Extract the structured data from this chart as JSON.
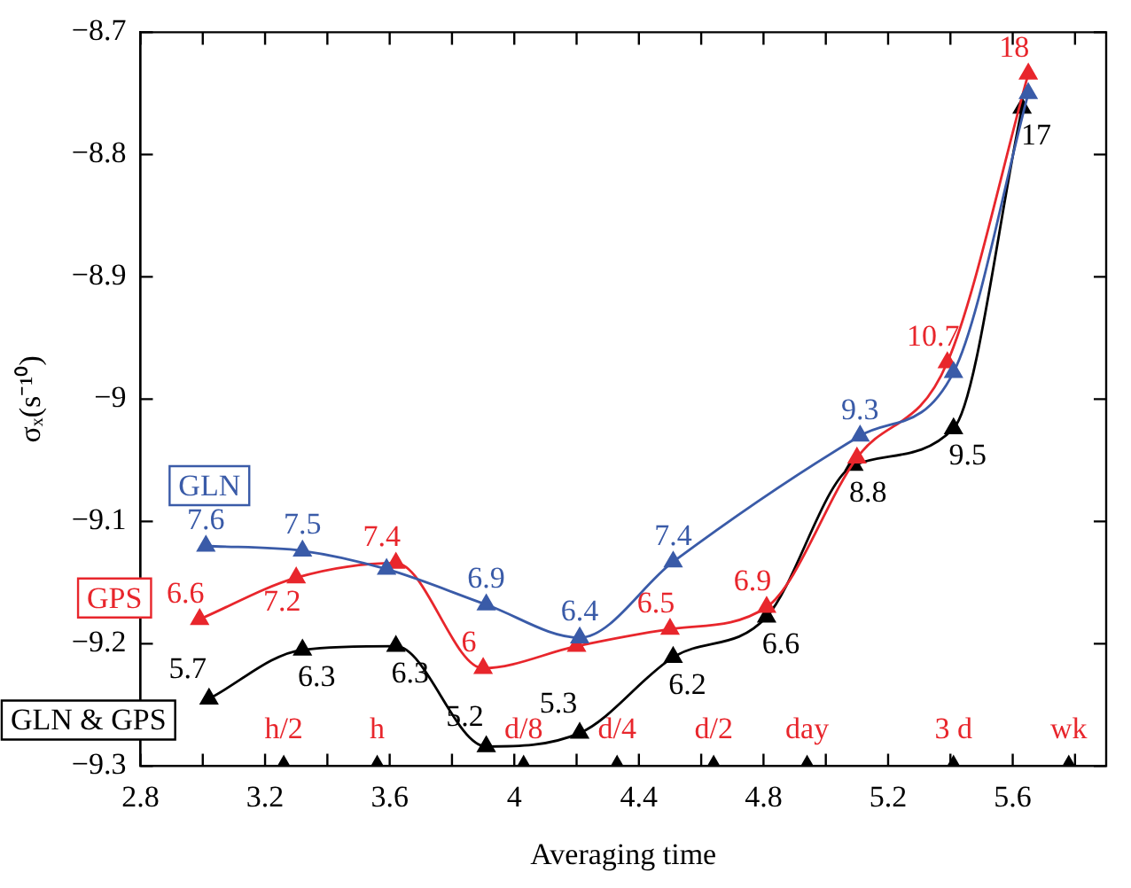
{
  "chart_data": {
    "type": "line",
    "xlabel": "Averaging time",
    "ylabel": "σₓ(s⁻¹⁰)",
    "xlim": [
      2.8,
      5.9
    ],
    "xticks": [
      2.8,
      {
        "value": 3.0,
        "label": null
      },
      3.2,
      {
        "value": 3.4,
        "label": null
      },
      3.6,
      {
        "value": 3.8,
        "label": null
      },
      4,
      {
        "value": 4.2,
        "label": null
      },
      4.4,
      {
        "value": 4.6,
        "label": null
      },
      4.8,
      {
        "value": 5.0,
        "label": null
      },
      5.2,
      {
        "value": 5.4,
        "label": null
      },
      5.6,
      {
        "value": 5.8,
        "label": null
      }
    ],
    "ylim": [
      -9.3,
      -8.7
    ],
    "yticks": [
      -9.3,
      -9.2,
      -9.1,
      -9,
      -8.9,
      -8.8,
      -8.7
    ],
    "grid": false,
    "legend": false,
    "marker": "triangle",
    "line_style": "solid",
    "series": [
      {
        "name": "GLN",
        "color": "#3a5ba8",
        "x": [
          3.01,
          3.32,
          3.59,
          3.91,
          4.21,
          4.51,
          5.11,
          5.41,
          5.65
        ],
        "values": [
          -9.12,
          -9.124,
          -9.139,
          -9.168,
          -9.195,
          -9.133,
          -9.03,
          -8.978,
          -8.75
        ]
      },
      {
        "name": "GPS",
        "color": "#e8262c",
        "x": [
          2.99,
          3.3,
          3.62,
          3.9,
          4.2,
          4.5,
          4.81,
          5.1,
          5.39,
          5.65
        ],
        "values": [
          -9.18,
          -9.146,
          -9.134,
          -9.22,
          -9.202,
          -9.188,
          -9.17,
          -9.048,
          -8.97,
          -8.734
        ]
      },
      {
        "name": "GLN & GPS",
        "color": "#000000",
        "x": [
          3.02,
          3.32,
          3.62,
          3.91,
          4.21,
          4.51,
          4.81,
          5.09,
          5.41,
          5.63
        ],
        "values": [
          -9.245,
          -9.205,
          -9.202,
          -9.284,
          -9.273,
          -9.211,
          -9.178,
          -9.054,
          -9.024,
          -8.762
        ]
      },
      {
        "type": "scatter",
        "color": "#000000",
        "x": [
          3.26,
          3.56,
          4.03,
          4.33,
          4.64,
          4.94,
          5.41,
          5.78
        ],
        "values": [
          -9.3,
          -9.3,
          -9.3,
          -9.3,
          -9.3,
          -9.3,
          -9.3,
          -9.3
        ]
      }
    ],
    "annotations": [
      {
        "text": "7.6",
        "x": 3.01,
        "y": -9.12
      },
      {
        "text": "7.5",
        "x": 3.32,
        "y": -9.124
      },
      {
        "text": "6.9",
        "x": 3.91,
        "y": -9.168
      },
      {
        "text": "6.4",
        "x": 4.21,
        "y": -9.195
      },
      {
        "text": "7.4",
        "x": 4.51,
        "y": -9.133
      },
      {
        "text": "9.3",
        "x": 5.11,
        "y": -9.03
      },
      {
        "text": "6.6",
        "x": 2.99,
        "y": -9.18
      },
      {
        "text": "7.2",
        "x": 3.3,
        "y": -9.146
      },
      {
        "text": "7.4",
        "x": 3.62,
        "y": -9.134
      },
      {
        "text": "6",
        "x": 3.9,
        "y": -9.22
      },
      {
        "text": "6.5",
        "x": 4.5,
        "y": -9.188
      },
      {
        "text": "6.9",
        "x": 4.81,
        "y": -9.17
      },
      {
        "text": "10.7",
        "x": 5.39,
        "y": -8.97
      },
      {
        "text": "18",
        "x": 5.65,
        "y": -8.734
      },
      {
        "text": "5.7",
        "x": 3.02,
        "y": -9.245
      },
      {
        "text": "6.3",
        "x": 3.32,
        "y": -9.205
      },
      {
        "text": "6.3",
        "x": 3.62,
        "y": -9.202
      },
      {
        "text": "5.2",
        "x": 3.91,
        "y": -9.284
      },
      {
        "text": "5.3",
        "x": 4.21,
        "y": -9.273
      },
      {
        "text": "6.2",
        "x": 4.51,
        "y": -9.211
      },
      {
        "text": "6.6",
        "x": 4.81,
        "y": -9.178
      },
      {
        "text": "8.8",
        "x": 5.09,
        "y": -9.054
      },
      {
        "text": "9.5",
        "x": 5.41,
        "y": -9.024
      },
      {
        "text": "17",
        "x": 5.63,
        "y": -8.762
      },
      {
        "text": "h/2",
        "x": 3.26,
        "y": -9.3
      },
      {
        "text": "h",
        "x": 3.56,
        "y": -9.3
      },
      {
        "text": "d/8",
        "x": 4.03,
        "y": -9.3
      },
      {
        "text": "d/4",
        "x": 4.33,
        "y": -9.3
      },
      {
        "text": "d/2",
        "x": 4.64,
        "y": -9.3
      },
      {
        "text": "day",
        "x": 4.94,
        "y": -9.3
      },
      {
        "text": "3 d",
        "x": 5.41,
        "y": -9.3
      },
      {
        "text": "wk",
        "x": 5.78,
        "y": -9.3
      }
    ]
  }
}
